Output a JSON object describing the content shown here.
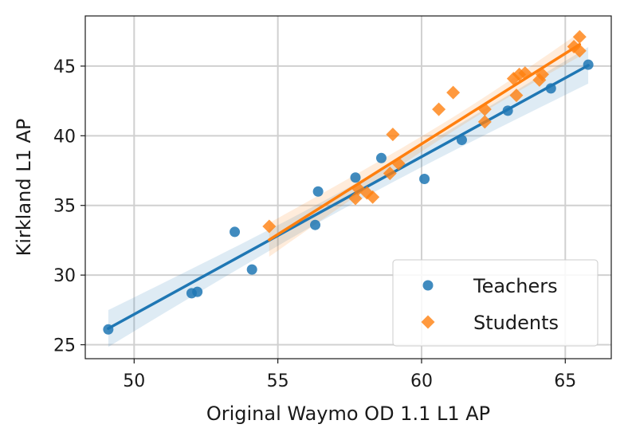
{
  "chart_data": {
    "type": "scatter",
    "xlabel": "Original Waymo OD 1.1 L1 AP",
    "ylabel": "Kirkland L1 AP",
    "xlim": [
      48.3,
      66.6
    ],
    "ylim": [
      24.0,
      48.6
    ],
    "xticks": [
      50,
      55,
      60,
      65
    ],
    "yticks": [
      25,
      30,
      35,
      40,
      45
    ],
    "grid": true,
    "legend_position": "bottom-right",
    "series": [
      {
        "name": "Teachers",
        "marker": "circle",
        "color": "#1f77b4",
        "regression": true,
        "x": [
          49.1,
          52.0,
          52.2,
          53.5,
          54.1,
          56.3,
          56.4,
          57.7,
          58.6,
          60.1,
          61.4,
          63.0,
          64.5,
          65.8
        ],
        "y": [
          26.1,
          28.7,
          28.8,
          33.1,
          30.4,
          33.6,
          36.0,
          37.0,
          38.4,
          36.9,
          39.7,
          41.8,
          43.4,
          45.1
        ]
      },
      {
        "name": "Students",
        "marker": "diamond",
        "color": "#ff7f0e",
        "regression": true,
        "x": [
          54.7,
          57.7,
          57.8,
          58.1,
          58.3,
          58.9,
          59.0,
          59.2,
          60.6,
          61.1,
          62.2,
          62.2,
          63.2,
          63.3,
          63.4,
          63.6,
          64.1,
          64.2,
          65.3,
          65.5,
          65.5
        ],
        "y": [
          33.5,
          35.5,
          36.2,
          35.9,
          35.6,
          37.3,
          40.1,
          38.0,
          41.9,
          43.1,
          41.9,
          41.0,
          44.1,
          42.9,
          44.4,
          44.5,
          44.0,
          44.4,
          46.4,
          46.1,
          47.1
        ]
      }
    ]
  }
}
